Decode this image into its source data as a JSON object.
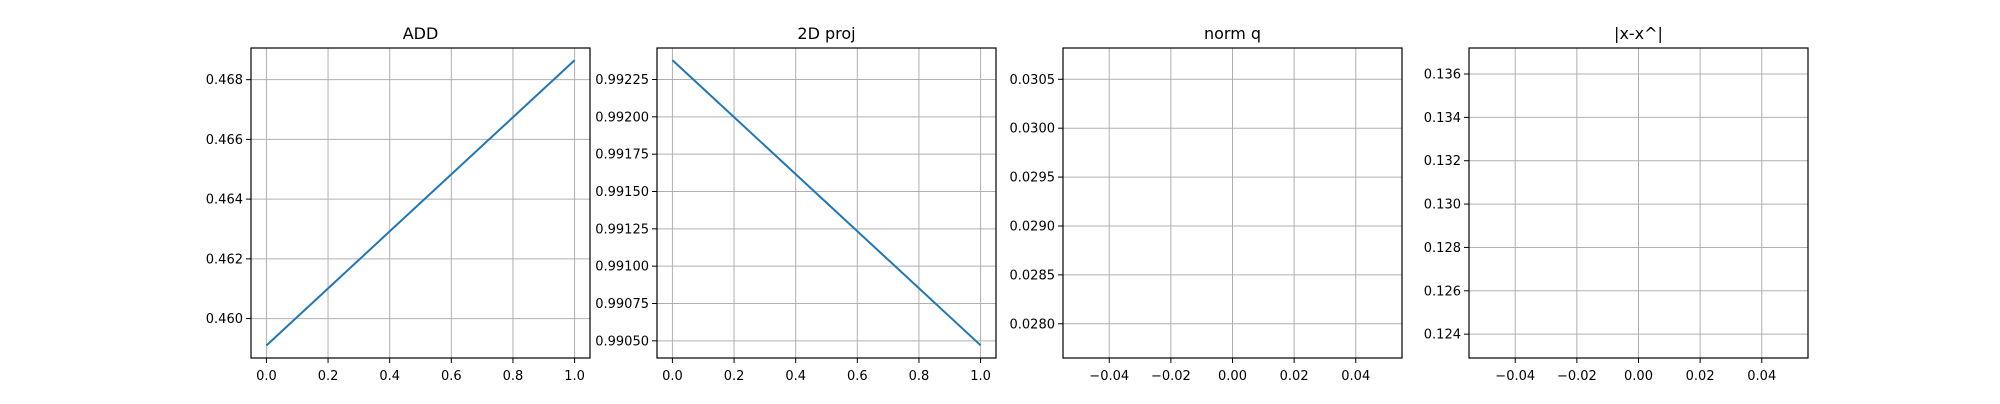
{
  "chart_data": [
    {
      "type": "line",
      "title": "ADD",
      "xlabel": "",
      "ylabel": "",
      "grid": true,
      "xlim": [
        -0.05,
        1.05
      ],
      "ylim": [
        0.45868,
        0.46906
      ],
      "xticks": [
        0.0,
        0.2,
        0.4,
        0.6,
        0.8,
        1.0
      ],
      "xtick_labels": [
        "0.0",
        "0.2",
        "0.4",
        "0.6",
        "0.8",
        "1.0"
      ],
      "yticks": [
        0.46,
        0.462,
        0.464,
        0.466,
        0.468
      ],
      "ytick_labels": [
        "0.460",
        "0.462",
        "0.464",
        "0.466",
        "0.468"
      ],
      "series": [
        {
          "color": "#1f77b4",
          "x": [
            0.0,
            1.0
          ],
          "y": [
            0.4591,
            0.46865
          ]
        }
      ]
    },
    {
      "type": "line",
      "title": "2D proj",
      "xlabel": "",
      "ylabel": "",
      "grid": true,
      "xlim": [
        -0.05,
        1.05
      ],
      "ylim": [
        0.990385,
        0.992461
      ],
      "xticks": [
        0.0,
        0.2,
        0.4,
        0.6,
        0.8,
        1.0
      ],
      "xtick_labels": [
        "0.0",
        "0.2",
        "0.4",
        "0.6",
        "0.8",
        "1.0"
      ],
      "yticks": [
        0.9905,
        0.99075,
        0.991,
        0.99125,
        0.9915,
        0.99175,
        0.992,
        0.99225
      ],
      "ytick_labels": [
        "0.99050",
        "0.99075",
        "0.99100",
        "0.99125",
        "0.99150",
        "0.99175",
        "0.99200",
        "0.99225"
      ],
      "series": [
        {
          "color": "#1f77b4",
          "x": [
            0.0,
            1.0
          ],
          "y": [
            0.99238,
            0.99047
          ]
        }
      ]
    },
    {
      "type": "line",
      "title": "norm q",
      "xlabel": "",
      "ylabel": "",
      "grid": true,
      "xlim": [
        -0.055,
        0.055
      ],
      "ylim": [
        0.02765,
        0.03082
      ],
      "xticks": [
        -0.04,
        -0.02,
        0.0,
        0.02,
        0.04
      ],
      "xtick_labels": [
        "−0.04",
        "−0.02",
        "0.00",
        "0.02",
        "0.04"
      ],
      "yticks": [
        0.028,
        0.0285,
        0.029,
        0.0295,
        0.03,
        0.0305
      ],
      "ytick_labels": [
        "0.0280",
        "0.0285",
        "0.0290",
        "0.0295",
        "0.0300",
        "0.0305"
      ],
      "series": []
    },
    {
      "type": "line",
      "title": "|x-x^|",
      "xlabel": "",
      "ylabel": "",
      "grid": true,
      "xlim": [
        -0.055,
        0.055
      ],
      "ylim": [
        0.1229,
        0.1372
      ],
      "xticks": [
        -0.04,
        -0.02,
        0.0,
        0.02,
        0.04
      ],
      "xtick_labels": [
        "−0.04",
        "−0.02",
        "0.00",
        "0.02",
        "0.04"
      ],
      "yticks": [
        0.124,
        0.126,
        0.128,
        0.13,
        0.132,
        0.134,
        0.136
      ],
      "ytick_labels": [
        "0.124",
        "0.126",
        "0.128",
        "0.130",
        "0.132",
        "0.134",
        "0.136"
      ],
      "series": []
    }
  ]
}
